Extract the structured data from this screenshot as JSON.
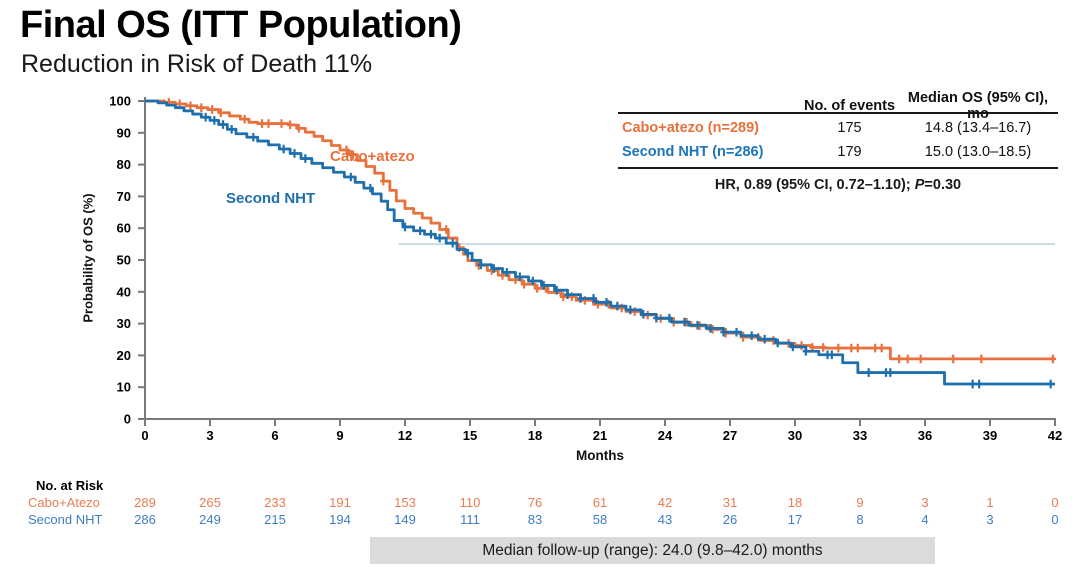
{
  "header": {
    "title": "Final OS (ITT Population)",
    "subtitle": "Reduction in Risk of Death 11%"
  },
  "stats_table": {
    "col_events": "No. of events",
    "col_median": "Median OS (95% CI), mo",
    "rows": [
      {
        "label": "Cabo+atezo (n=289)",
        "events": "175",
        "median": "14.8 (13.4–16.7)"
      },
      {
        "label": "Second NHT (n=286)",
        "events": "179",
        "median": "15.0 (13.0–18.5)"
      }
    ],
    "hr_prefix": "HR, 0.89 (95% CI, 0.72–1.10); ",
    "p_label": "P",
    "p_value": "=0.30"
  },
  "chart_data": {
    "type": "line",
    "subtype": "kaplan-meier-step",
    "title": "Final OS (ITT Population)",
    "xlabel": "Months",
    "ylabel": "Probability of OS (%)",
    "xlim": [
      0,
      42
    ],
    "ylim": [
      0,
      100
    ],
    "x_ticks": [
      0,
      3,
      6,
      9,
      12,
      15,
      18,
      21,
      24,
      27,
      30,
      33,
      36,
      39,
      42
    ],
    "y_ticks": [
      0,
      10,
      20,
      30,
      40,
      50,
      60,
      70,
      80,
      90,
      100
    ],
    "grid": false,
    "reference_line": {
      "y": 55,
      "x_start": 11.7,
      "x_end": 42,
      "color": "#C9DCEC"
    },
    "series": [
      {
        "name": "Cabo+atezo",
        "color": "#E8713C",
        "median_os": 14.8,
        "points": [
          [
            0,
            100
          ],
          [
            0.9,
            99.6
          ],
          [
            1.4,
            99.1
          ],
          [
            1.9,
            98.5
          ],
          [
            2.4,
            97.9
          ],
          [
            2.9,
            97.3
          ],
          [
            3.4,
            96.3
          ],
          [
            3.9,
            95.3
          ],
          [
            4.4,
            94.3
          ],
          [
            4.8,
            93.3
          ],
          [
            5.2,
            92.9
          ],
          [
            6.6,
            92.5
          ],
          [
            7.0,
            91.4
          ],
          [
            7.4,
            90.2
          ],
          [
            7.8,
            88.9
          ],
          [
            8.2,
            87.5
          ],
          [
            8.6,
            86.0
          ],
          [
            9.0,
            84.6
          ],
          [
            9.4,
            83.1
          ],
          [
            9.8,
            81.3
          ],
          [
            10.2,
            79.4
          ],
          [
            10.6,
            77.3
          ],
          [
            11.0,
            74.8
          ],
          [
            11.3,
            71.9
          ],
          [
            11.6,
            68.6
          ],
          [
            12.0,
            66.2
          ],
          [
            12.4,
            64.7
          ],
          [
            12.8,
            63.2
          ],
          [
            13.2,
            61.6
          ],
          [
            13.6,
            59.6
          ],
          [
            14.0,
            56.9
          ],
          [
            14.4,
            53.9
          ],
          [
            14.7,
            51.8
          ],
          [
            14.9,
            49.8
          ],
          [
            15.3,
            48.3
          ],
          [
            15.8,
            46.7
          ],
          [
            16.3,
            45.2
          ],
          [
            16.8,
            43.8
          ],
          [
            17.4,
            42.4
          ],
          [
            18.0,
            41.1
          ],
          [
            18.6,
            39.8
          ],
          [
            19.2,
            38.5
          ],
          [
            19.9,
            37.3
          ],
          [
            20.7,
            36.1
          ],
          [
            21.5,
            34.9
          ],
          [
            22.2,
            33.8
          ],
          [
            22.9,
            32.7
          ],
          [
            23.6,
            31.6
          ],
          [
            24.4,
            30.4
          ],
          [
            25.2,
            29.3
          ],
          [
            26.0,
            28.2
          ],
          [
            26.8,
            27.0
          ],
          [
            27.6,
            25.7
          ],
          [
            28.4,
            24.7
          ],
          [
            29.2,
            23.8
          ],
          [
            30.0,
            23.1
          ],
          [
            30.8,
            22.5
          ],
          [
            31.4,
            22.3
          ],
          [
            34.4,
            18.9
          ],
          [
            42,
            18.9
          ]
        ],
        "censor_months": [
          1.1,
          1.6,
          2.1,
          2.6,
          3.1,
          3.5,
          4.6,
          5.4,
          5.7,
          6.3,
          6.7,
          7.1,
          9.3,
          9.6,
          11.0,
          13.9,
          14.5,
          15.4,
          16.0,
          16.5,
          17.1,
          17.5,
          18.1,
          18.5,
          19.3,
          19.7,
          20.3,
          20.9,
          21.4,
          22.0,
          22.6,
          23.2,
          23.8,
          24.4,
          25.0,
          25.6,
          26.2,
          26.8,
          27.6,
          28.3,
          29.0,
          29.7,
          30.3,
          30.8,
          31.3,
          32.0,
          32.6,
          32.9,
          33.7,
          34.0,
          34.8,
          35.2,
          35.8,
          37.3,
          38.6,
          41.9
        ]
      },
      {
        "name": "Second NHT",
        "color": "#1E6FAE",
        "median_os": 15.0,
        "points": [
          [
            0,
            100
          ],
          [
            0.6,
            99.4
          ],
          [
            1.0,
            98.7
          ],
          [
            1.4,
            97.9
          ],
          [
            1.8,
            96.9
          ],
          [
            2.2,
            95.9
          ],
          [
            2.6,
            94.9
          ],
          [
            3.0,
            93.9
          ],
          [
            3.4,
            92.6
          ],
          [
            3.8,
            91.1
          ],
          [
            4.2,
            89.7
          ],
          [
            4.7,
            88.6
          ],
          [
            5.2,
            87.4
          ],
          [
            5.7,
            86.2
          ],
          [
            6.2,
            84.9
          ],
          [
            6.7,
            83.5
          ],
          [
            7.2,
            81.9
          ],
          [
            7.7,
            80.4
          ],
          [
            8.2,
            79.0
          ],
          [
            8.7,
            77.6
          ],
          [
            9.2,
            76.1
          ],
          [
            9.7,
            74.4
          ],
          [
            10.1,
            72.6
          ],
          [
            10.5,
            70.8
          ],
          [
            10.9,
            68.5
          ],
          [
            11.2,
            65.8
          ],
          [
            11.5,
            62.4
          ],
          [
            11.9,
            60.4
          ],
          [
            12.4,
            59.2
          ],
          [
            12.9,
            58.1
          ],
          [
            13.4,
            56.9
          ],
          [
            13.9,
            55.3
          ],
          [
            14.4,
            53.3
          ],
          [
            14.8,
            52.1
          ],
          [
            15.1,
            49.9
          ],
          [
            15.5,
            48.5
          ],
          [
            16.0,
            47.3
          ],
          [
            16.5,
            46.1
          ],
          [
            17.1,
            44.7
          ],
          [
            17.7,
            43.4
          ],
          [
            18.3,
            42.0
          ],
          [
            18.9,
            40.5
          ],
          [
            19.5,
            39.1
          ],
          [
            20.1,
            37.9
          ],
          [
            20.8,
            36.7
          ],
          [
            21.5,
            35.5
          ],
          [
            22.2,
            34.3
          ],
          [
            22.9,
            32.9
          ],
          [
            23.6,
            31.7
          ],
          [
            24.3,
            30.5
          ],
          [
            25.1,
            29.5
          ],
          [
            25.9,
            28.5
          ],
          [
            26.7,
            27.3
          ],
          [
            27.5,
            26.2
          ],
          [
            28.3,
            25.1
          ],
          [
            29.1,
            23.9
          ],
          [
            29.8,
            22.7
          ],
          [
            30.5,
            21.3
          ],
          [
            31.1,
            20.2
          ],
          [
            32.2,
            17.7
          ],
          [
            32.9,
            14.6
          ],
          [
            36.9,
            11.0
          ],
          [
            42,
            11.0
          ]
        ],
        "censor_months": [
          2.8,
          3.2,
          3.6,
          4.0,
          5.0,
          6.4,
          6.9,
          7.4,
          9.5,
          10.4,
          12.0,
          12.7,
          13.2,
          13.6,
          14.2,
          14.9,
          15.5,
          16.1,
          16.7,
          17.3,
          17.9,
          18.4,
          19.0,
          19.5,
          20.1,
          20.7,
          21.3,
          21.8,
          22.4,
          23.0,
          23.6,
          24.2,
          24.9,
          25.5,
          26.1,
          26.7,
          27.3,
          28.0,
          28.6,
          29.2,
          29.9,
          30.5,
          31.5,
          31.7,
          33.4,
          34.2,
          34.4,
          38.2,
          38.5,
          41.8
        ]
      }
    ]
  },
  "risk_table": {
    "title": "No. at Risk",
    "months": [
      0,
      3,
      6,
      9,
      12,
      15,
      18,
      21,
      24,
      27,
      30,
      33,
      36,
      39,
      42
    ],
    "rows": [
      {
        "label": "Cabo+Atezo",
        "values": [
          289,
          265,
          233,
          191,
          153,
          110,
          76,
          61,
          42,
          31,
          18,
          9,
          3,
          1,
          0
        ]
      },
      {
        "label": "Second NHT",
        "values": [
          286,
          249,
          215,
          194,
          149,
          111,
          83,
          58,
          43,
          26,
          17,
          8,
          4,
          3,
          0
        ]
      }
    ]
  },
  "footer": {
    "note": "Median follow-up (range): 24.0 (9.8–42.0) months"
  }
}
